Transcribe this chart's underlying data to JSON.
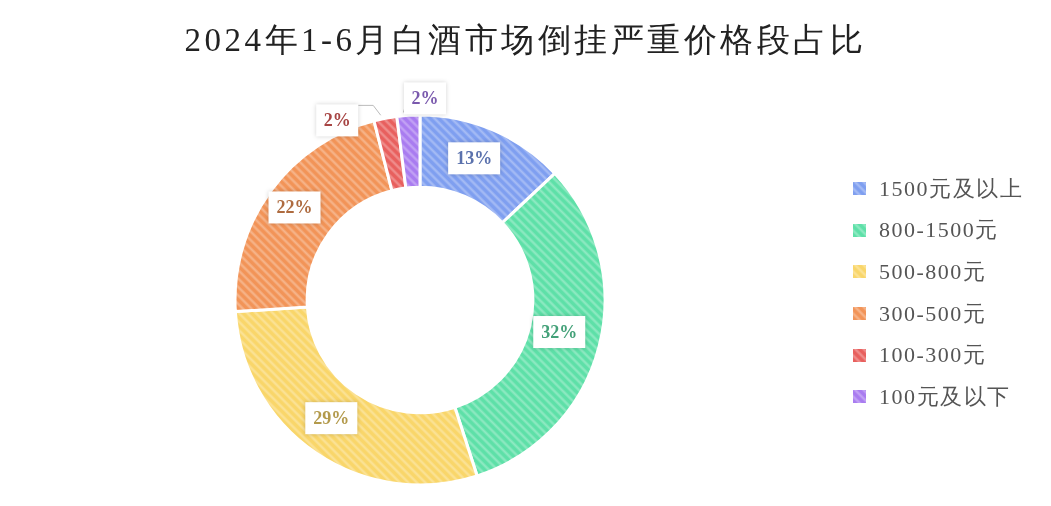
{
  "chart_data": {
    "type": "donut",
    "title": "2024年1-6月白酒市场倒挂严重价格段占比",
    "categories": [
      "1500元及以上",
      "800-1500元",
      "500-800元",
      "300-500元",
      "100-300元",
      "100元及以下"
    ],
    "values": [
      13,
      32,
      29,
      22,
      2,
      2
    ],
    "colors": [
      "#7f9ff0",
      "#5ee0a8",
      "#f9d66a",
      "#f29458",
      "#e8605e",
      "#a97cf0"
    ],
    "value_labels": [
      "13%",
      "32%",
      "29%",
      "22%",
      "2%",
      "2%"
    ],
    "legend": "right"
  }
}
